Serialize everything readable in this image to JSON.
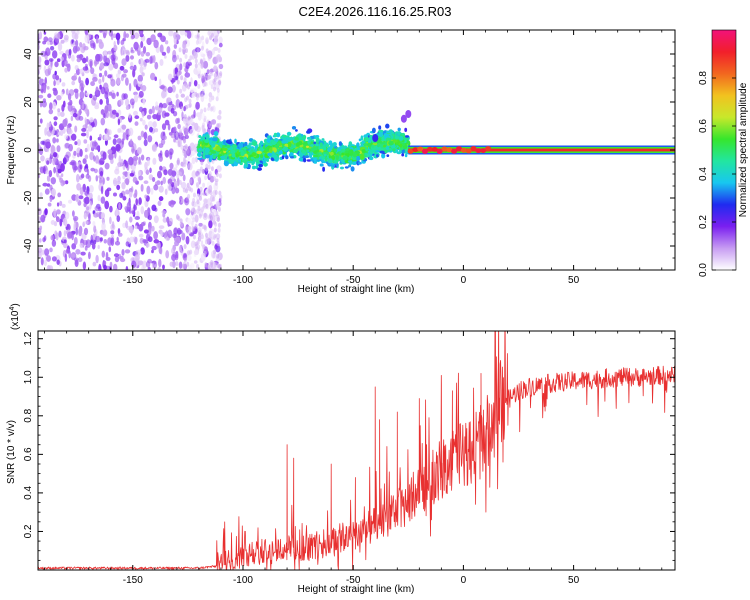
{
  "title": "C2E4.2026.116.16.25.R03",
  "chart_data": [
    {
      "type": "heatmap",
      "xlabel": "Height of straight line (km)",
      "ylabel": "Frequency (Hz)",
      "xlim": [
        -193,
        96
      ],
      "ylim": [
        -50,
        50
      ],
      "xticks": [
        -150,
        -100,
        -50,
        0,
        50
      ],
      "yticks": [
        -40,
        -20,
        0,
        20,
        40
      ],
      "colorbar": {
        "label": "Normalized spectral amplitude",
        "range": [
          0,
          1
        ],
        "ticks": [
          0.0,
          0.2,
          0.4,
          0.6,
          0.8
        ],
        "colormap": [
          "#ffffff",
          "#c79cf2",
          "#7a1ff0",
          "#1f2bf0",
          "#18c7f0",
          "#22e6a0",
          "#36e62c",
          "#c8e82b",
          "#f2c21f",
          "#f2671f",
          "#f21f2b",
          "#f2127a"
        ]
      },
      "regions": [
        {
          "name": "noise",
          "x_range": [
            -193,
            -110
          ],
          "freq_range": [
            -50,
            50
          ],
          "amplitude": 0.12
        },
        {
          "name": "faint halo",
          "x_range": [
            -130,
            -110
          ],
          "freq_range": [
            -50,
            50
          ],
          "amplitude": 0.05
        },
        {
          "name": "transition cloud",
          "x_range": [
            -120,
            -25
          ],
          "freq_range": [
            -10,
            9
          ],
          "amplitude": 0.35
        },
        {
          "name": "coherent line",
          "x_range": [
            -25,
            96
          ],
          "freq_center": 0,
          "amplitude": 0.9
        }
      ],
      "isolated_features": [
        {
          "x": -27,
          "f": 13,
          "amplitude": 0.15
        },
        {
          "x": -25,
          "f": 15,
          "amplitude": 0.15
        },
        {
          "x": -40,
          "f": 5,
          "amplitude": 0.25
        }
      ]
    },
    {
      "type": "line",
      "xlabel": "Height of straight line (km)",
      "ylabel": "SNR (10 * v/v)",
      "y_multiplier": "(x10^4)",
      "multiplier_base": "(x10",
      "multiplier_exp": "4",
      "multiplier_end": ")",
      "xlim": [
        -193,
        96
      ],
      "ylim": [
        0,
        1.24
      ],
      "xticks": [
        -150,
        -100,
        -50,
        0,
        50
      ],
      "yticks": [
        0.2,
        0.4,
        0.6,
        0.8,
        1.0,
        1.2
      ],
      "color": "#e83030",
      "series": [
        {
          "name": "SNR",
          "envelope_x": [
            -193,
            -120,
            -112,
            -105,
            -100,
            -90,
            -80,
            -70,
            -60,
            -50,
            -40,
            -30,
            -25,
            -20,
            -15,
            -10,
            -5,
            0,
            5,
            10,
            15,
            20,
            25,
            30,
            40,
            50,
            60,
            70,
            80,
            90,
            96
          ],
          "envelope_base": [
            0.01,
            0.01,
            0.02,
            0.04,
            0.06,
            0.08,
            0.09,
            0.1,
            0.12,
            0.16,
            0.2,
            0.27,
            0.32,
            0.38,
            0.43,
            0.48,
            0.52,
            0.55,
            0.58,
            0.64,
            0.75,
            0.88,
            0.93,
            0.95,
            0.97,
            0.98,
            0.99,
            1.0,
            1.0,
            1.01,
            1.01
          ]
        }
      ],
      "spikes": [
        {
          "x": -80,
          "y": 0.65
        },
        {
          "x": -77,
          "y": 0.58
        },
        {
          "x": -60,
          "y": 0.55
        },
        {
          "x": -49,
          "y": 0.48
        },
        {
          "x": -40,
          "y": 0.95
        },
        {
          "x": -38,
          "y": 0.78
        },
        {
          "x": -30,
          "y": 0.82
        },
        {
          "x": -20,
          "y": 0.89
        },
        {
          "x": -10,
          "y": 0.96
        },
        {
          "x": -5,
          "y": 0.93
        },
        {
          "x": 8,
          "y": 1.02
        },
        {
          "x": 16,
          "y": 1.24
        }
      ]
    }
  ]
}
